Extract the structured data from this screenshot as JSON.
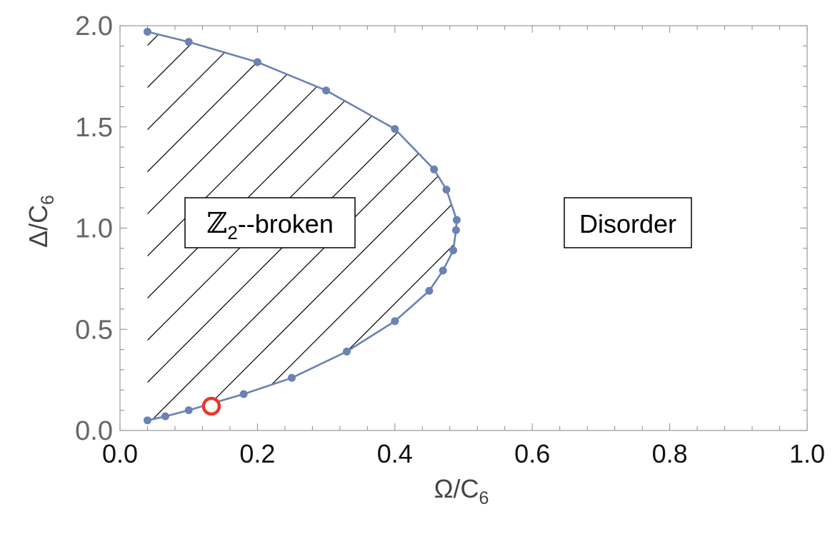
{
  "chart_data": {
    "type": "scatter",
    "xlabel": "Ω/C6",
    "ylabel": "Δ/C6",
    "xlim": [
      0,
      1
    ],
    "ylim": [
      0,
      2
    ],
    "x_ticks": [
      "0.0",
      "0.2",
      "0.4",
      "0.6",
      "0.8",
      "1.0"
    ],
    "y_ticks": [
      "0.0",
      "0.5",
      "1.0",
      "1.5",
      "2.0"
    ],
    "grid": false,
    "series": [
      {
        "style": "line-with-points",
        "color": "#6a82b4",
        "x": [
          0.04,
          0.1,
          0.2,
          0.3,
          0.4,
          0.457,
          0.475,
          0.49,
          0.489,
          0.485,
          0.47,
          0.45,
          0.4,
          0.33,
          0.25,
          0.18,
          0.1,
          0.066,
          0.04
        ],
        "y": [
          1.97,
          1.92,
          1.82,
          1.68,
          1.49,
          1.29,
          1.19,
          1.04,
          0.99,
          0.89,
          0.79,
          0.69,
          0.54,
          0.39,
          0.26,
          0.18,
          0.1,
          0.07,
          0.05
        ]
      }
    ],
    "highlight_point": {
      "x": 0.133,
      "y": 0.12,
      "color": "#e8392a"
    },
    "annotations": [
      {
        "text": "ℤ2--broken",
        "region": "hatched area inside curve"
      },
      {
        "text": "Disorder",
        "region": "right of curve"
      }
    ]
  }
}
